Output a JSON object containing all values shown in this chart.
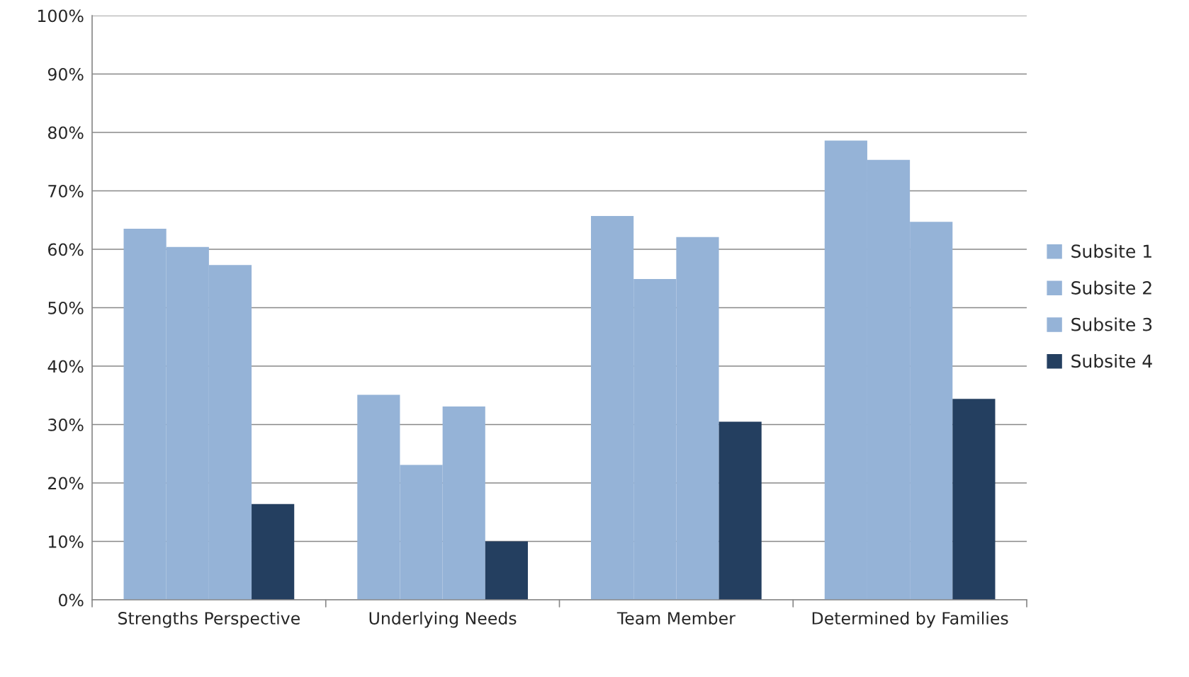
{
  "chart_data": {
    "type": "bar",
    "categories": [
      "Strengths Perspective",
      "Underlying Needs",
      "Team Member",
      "Determined by Families"
    ],
    "series": [
      {
        "name": "Subsite 1",
        "color": "#95b3d7",
        "values": [
          63.5,
          35.1,
          65.7,
          78.6
        ]
      },
      {
        "name": "Subsite 2",
        "color": "#95b3d7",
        "values": [
          60.4,
          23.1,
          54.9,
          75.3
        ]
      },
      {
        "name": "Subsite 3",
        "color": "#95b3d7",
        "values": [
          57.3,
          33.1,
          62.1,
          64.7
        ]
      },
      {
        "name": "Subsite 4",
        "color": "#243f60",
        "values": [
          16.4,
          10.0,
          30.5,
          34.4
        ]
      }
    ],
    "ylim": [
      0,
      100
    ],
    "yticks": [
      {
        "value": 0,
        "label": "0%"
      },
      {
        "value": 10,
        "label": "10%"
      },
      {
        "value": 20,
        "label": "20%"
      },
      {
        "value": 30,
        "label": "30%"
      },
      {
        "value": 40,
        "label": "40%"
      },
      {
        "value": 50,
        "label": "50%"
      },
      {
        "value": 60,
        "label": "60%"
      },
      {
        "value": 70,
        "label": "70%"
      },
      {
        "value": 80,
        "label": "80%"
      },
      {
        "value": 90,
        "label": "90%"
      },
      {
        "value": 100,
        "label": "100%"
      }
    ],
    "grid": "y",
    "legend": "right"
  }
}
